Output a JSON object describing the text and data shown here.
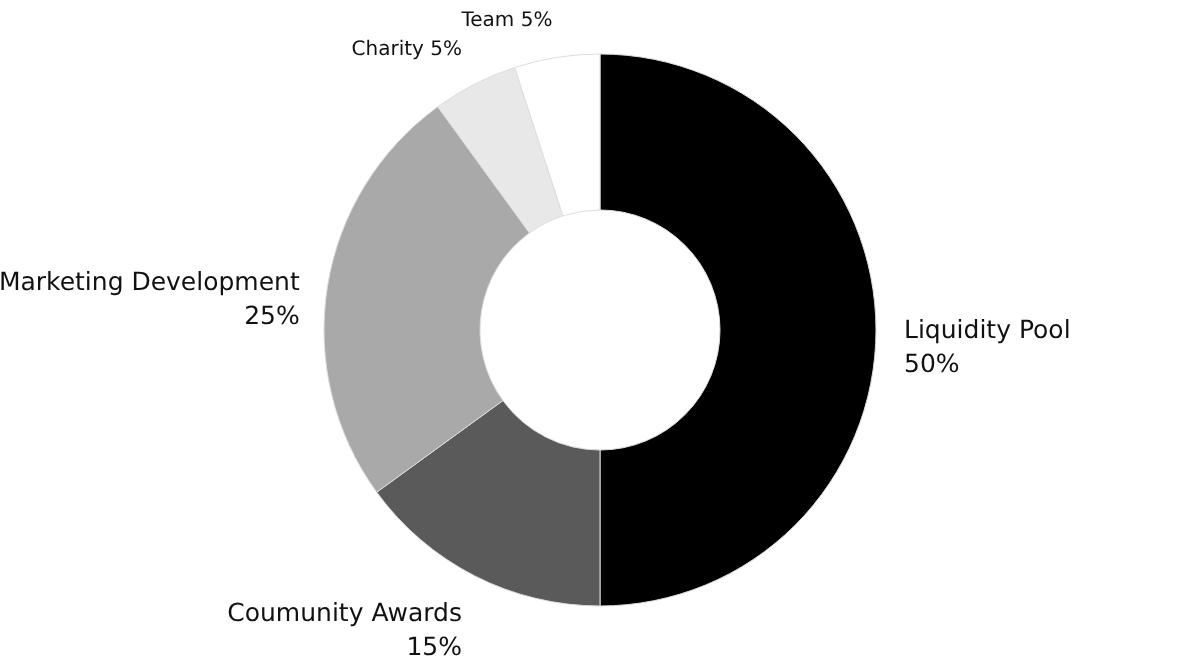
{
  "chart_data": {
    "type": "donut",
    "categories": [
      "Liquidity Pool",
      "Coumunity Awards",
      "Marketing Development",
      "Charity",
      "Team"
    ],
    "values": [
      50,
      15,
      25,
      5,
      5
    ],
    "value_labels": [
      "50%",
      "15%",
      "25%",
      "5%",
      "5%"
    ],
    "colors": [
      "#000000",
      "#5a5a5a",
      "#a9a9a9",
      "#e8e8e8",
      "#ffffff"
    ]
  }
}
